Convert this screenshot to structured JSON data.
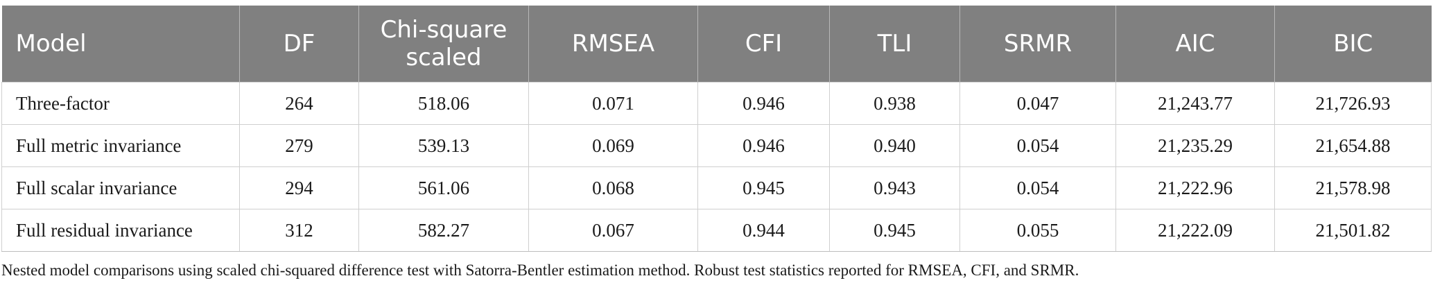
{
  "table": {
    "headers": [
      "Model",
      "DF",
      "Chi-square scaled",
      "RMSEA",
      "CFI",
      "TLI",
      "SRMR",
      "AIC",
      "BIC"
    ],
    "rows": [
      [
        "Three-factor",
        "264",
        "518.06",
        "0.071",
        "0.946",
        "0.938",
        "0.047",
        "21,243.77",
        "21,726.93"
      ],
      [
        "Full metric invariance",
        "279",
        "539.13",
        "0.069",
        "0.946",
        "0.940",
        "0.054",
        "21,235.29",
        "21,654.88"
      ],
      [
        "Full scalar invariance",
        "294",
        "561.06",
        "0.068",
        "0.945",
        "0.943",
        "0.054",
        "21,222.96",
        "21,578.98"
      ],
      [
        "Full residual invariance",
        "312",
        "582.27",
        "0.067",
        "0.944",
        "0.945",
        "0.055",
        "21,222.09",
        "21,501.82"
      ]
    ]
  },
  "footnote": "Nested model comparisons using scaled chi-squared difference test with Satorra-Bentler estimation method. Robust test statistics reported for RMSEA, CFI, and SRMR.",
  "colors": {
    "header_bg": "#808080",
    "header_text": "#ffffff",
    "grid": "#cfcfcf"
  }
}
